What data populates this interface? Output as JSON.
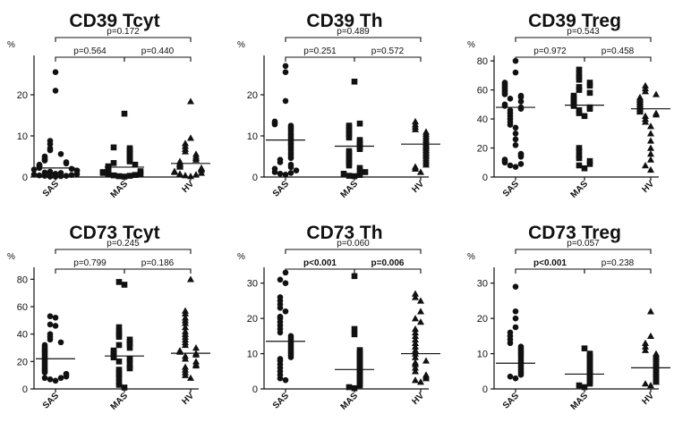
{
  "chart_data": [
    {
      "type": "scatter",
      "title": "CD39 Tcyt",
      "ylabel": "%",
      "ylim": [
        0,
        30
      ],
      "yticks": [
        0,
        10,
        20
      ],
      "categories": [
        "SAS",
        "MAS",
        "HV"
      ],
      "markers": [
        "circle",
        "square",
        "triangle"
      ],
      "series": [
        {
          "name": "SAS",
          "median": 2.2,
          "values": [
            25.5,
            21,
            8.8,
            8,
            7,
            6.5,
            5.6,
            5,
            4.6,
            4.2,
            4,
            3.6,
            3.3,
            3,
            2.8,
            2.6,
            2.4,
            2.2,
            2,
            1.8,
            1.6,
            1.5,
            1.3,
            1.1,
            1,
            0.9,
            0.8,
            0.7,
            0.6,
            0.5,
            0.4,
            0.3,
            0.3,
            0.2,
            0.1,
            0.1
          ]
        },
        {
          "name": "MAS",
          "median": 2.4,
          "values": [
            15.4,
            7.2,
            7,
            6.6,
            6.2,
            5.8,
            5.4,
            5,
            4.6,
            4.2,
            3.8,
            3.4,
            3,
            2.6,
            2.4,
            2.2,
            2,
            1.8,
            1.6,
            1.4,
            1.2,
            1,
            0.8,
            0.6,
            0.5,
            0.4,
            0.3,
            0.2,
            0.1
          ]
        },
        {
          "name": "HV",
          "median": 3.3,
          "values": [
            18.4,
            9.5,
            8.2,
            7.5,
            6.8,
            6.2,
            5.6,
            5,
            4.6,
            4.2,
            3.8,
            3.4,
            3.1,
            2.8,
            2.5,
            2.2,
            2,
            1.7,
            1.4,
            1.2,
            1,
            0.8,
            0.6,
            0.4,
            0.2
          ]
        }
      ],
      "comparisons": [
        {
          "from": "SAS",
          "to": "HV",
          "p": "p=0.172",
          "bold": false
        },
        {
          "from": "SAS",
          "to": "MAS",
          "p": "p=0.564",
          "bold": false
        },
        {
          "from": "MAS",
          "to": "HV",
          "p": "p=0.440",
          "bold": false
        }
      ]
    },
    {
      "type": "scatter",
      "title": "CD39 Th",
      "ylabel": "%",
      "ylim": [
        0,
        30
      ],
      "yticks": [
        0,
        10,
        20
      ],
      "categories": [
        "SAS",
        "MAS",
        "HV"
      ],
      "markers": [
        "circle",
        "square",
        "triangle"
      ],
      "series": [
        {
          "name": "SAS",
          "median": 9,
          "values": [
            27,
            25.5,
            18.5,
            13.5,
            13.2,
            12.8,
            12.5,
            12.2,
            11.8,
            11.4,
            11,
            10.5,
            10.2,
            9.8,
            9.4,
            9,
            8.6,
            8.2,
            7.8,
            7.4,
            7,
            6.5,
            6,
            5.5,
            5,
            4.6,
            4.2,
            3.6,
            3,
            2.4,
            2,
            1.6,
            1.2,
            1,
            0.8,
            0.6
          ]
        },
        {
          "name": "MAS",
          "median": 7.5,
          "values": [
            23.2,
            13,
            12.5,
            12,
            11.4,
            10.8,
            10.2,
            9.6,
            9,
            8.4,
            8,
            7.6,
            7.2,
            6.8,
            6.3,
            5.8,
            5.2,
            4.6,
            4,
            3.4,
            2.8,
            2.2,
            1.6,
            1.2,
            0.8,
            0.5,
            0.3,
            0.2
          ]
        },
        {
          "name": "HV",
          "median": 8,
          "values": [
            13.5,
            12.8,
            12.2,
            11.6,
            11,
            10.5,
            10,
            9.5,
            9,
            8.6,
            8.2,
            7.8,
            7.4,
            7,
            6.6,
            6.2,
            5.8,
            5.4,
            5,
            4.5,
            4,
            3.5,
            3,
            2.5,
            2,
            1.2
          ]
        }
      ],
      "comparisons": [
        {
          "from": "SAS",
          "to": "HV",
          "p": "p=0.489",
          "bold": false
        },
        {
          "from": "SAS",
          "to": "MAS",
          "p": "p=0.251",
          "bold": false
        },
        {
          "from": "MAS",
          "to": "HV",
          "p": "p=0.572",
          "bold": false
        }
      ]
    },
    {
      "type": "scatter",
      "title": "CD39 Treg",
      "ylabel": "%",
      "ylim": [
        0,
        85
      ],
      "yticks": [
        0,
        20,
        40,
        60,
        80
      ],
      "categories": [
        "SAS",
        "MAS",
        "HV"
      ],
      "markers": [
        "circle",
        "square",
        "triangle"
      ],
      "series": [
        {
          "name": "SAS",
          "median": 48,
          "values": [
            80,
            72,
            65,
            64,
            63,
            62,
            61,
            60,
            59,
            58,
            57,
            56,
            55,
            54,
            52,
            50,
            49,
            48,
            47,
            46,
            44,
            42,
            40,
            38,
            36,
            34,
            30,
            26,
            22,
            16,
            15,
            14,
            12,
            11,
            10,
            9,
            8,
            7
          ]
        },
        {
          "name": "MAS",
          "median": 49.5,
          "values": [
            74,
            71,
            69,
            67,
            65,
            63,
            62,
            60,
            58,
            56,
            55,
            54,
            53,
            52,
            51,
            50,
            49,
            48,
            47,
            46,
            44,
            42,
            20,
            18,
            15,
            13,
            11,
            9,
            8,
            6
          ]
        },
        {
          "name": "HV",
          "median": 47,
          "values": [
            63,
            61,
            59,
            57,
            55,
            54,
            53,
            52,
            51,
            50,
            49,
            48,
            47,
            46,
            45,
            44,
            43,
            42,
            40,
            38,
            35,
            30,
            25,
            20,
            16,
            12,
            8,
            5
          ]
        }
      ],
      "comparisons": [
        {
          "from": "SAS",
          "to": "HV",
          "p": "p=0.543",
          "bold": false
        },
        {
          "from": "SAS",
          "to": "MAS",
          "p": "p=0.972",
          "bold": false
        },
        {
          "from": "MAS",
          "to": "HV",
          "p": "p=0.458",
          "bold": false
        }
      ]
    },
    {
      "type": "scatter",
      "title": "CD73 Tcyt",
      "ylabel": "%",
      "ylim": [
        0,
        90
      ],
      "yticks": [
        0,
        20,
        40,
        60,
        80
      ],
      "categories": [
        "SAS",
        "MAS",
        "HV"
      ],
      "markers": [
        "circle",
        "square",
        "triangle"
      ],
      "series": [
        {
          "name": "SAS",
          "median": 22,
          "values": [
            53,
            52,
            47,
            46,
            40,
            38,
            36,
            34,
            32,
            31,
            30,
            29,
            28,
            27,
            26,
            25,
            24,
            23,
            22,
            21,
            20,
            19,
            18,
            17,
            16,
            15,
            14,
            13,
            12,
            11,
            10,
            9,
            8,
            8,
            7,
            6
          ]
        },
        {
          "name": "MAS",
          "median": 24,
          "values": [
            78,
            76,
            45,
            42,
            40,
            38,
            36,
            34,
            33,
            32,
            30,
            28,
            27,
            26,
            25,
            24,
            23,
            22,
            21,
            20,
            18,
            16,
            15,
            14,
            12,
            10,
            8,
            5,
            3,
            1
          ]
        },
        {
          "name": "HV",
          "median": 26,
          "values": [
            80,
            57,
            55,
            52,
            50,
            48,
            45,
            42,
            40,
            38,
            36,
            34,
            32,
            30,
            28,
            27,
            26,
            25,
            24,
            22,
            20,
            18,
            17,
            16,
            14,
            12,
            10,
            8
          ]
        }
      ],
      "comparisons": [
        {
          "from": "SAS",
          "to": "HV",
          "p": "p=0.245",
          "bold": false
        },
        {
          "from": "SAS",
          "to": "MAS",
          "p": "p=0.799",
          "bold": false
        },
        {
          "from": "MAS",
          "to": "HV",
          "p": "p=0.186",
          "bold": false
        }
      ]
    },
    {
      "type": "scatter",
      "title": "CD73 Th",
      "ylabel": "%",
      "ylim": [
        0,
        35
      ],
      "yticks": [
        0,
        10,
        20,
        30
      ],
      "categories": [
        "SAS",
        "MAS",
        "HV"
      ],
      "markers": [
        "circle",
        "square",
        "triangle"
      ],
      "series": [
        {
          "name": "SAS",
          "median": 13.5,
          "values": [
            33,
            31,
            30,
            26,
            25,
            24,
            23,
            22,
            20.5,
            20,
            19,
            18,
            17,
            16,
            15,
            14.5,
            14,
            13.5,
            13,
            12.5,
            12,
            11.5,
            11,
            10.5,
            10,
            9.5,
            9,
            8.5,
            8,
            7,
            6,
            5,
            4,
            3,
            2.5
          ]
        },
        {
          "name": "MAS",
          "median": 5.5,
          "values": [
            32,
            17,
            15.5,
            11,
            10.5,
            10,
            9.5,
            9,
            8.5,
            8,
            7.5,
            7,
            6.5,
            6,
            5.5,
            5,
            4.5,
            4,
            3.5,
            3,
            2.5,
            2,
            1.5,
            1,
            0.5,
            0.2
          ]
        },
        {
          "name": "HV",
          "median": 10,
          "values": [
            27,
            26,
            25,
            22,
            20,
            19,
            17,
            16,
            15,
            14,
            13,
            12,
            11,
            10,
            9,
            8,
            7.5,
            7,
            6,
            5,
            4,
            3.5,
            3,
            2.5,
            2
          ]
        }
      ],
      "comparisons": [
        {
          "from": "SAS",
          "to": "HV",
          "p": "p=0.060",
          "bold": false
        },
        {
          "from": "SAS",
          "to": "MAS",
          "p": "p<0.001",
          "bold": true
        },
        {
          "from": "MAS",
          "to": "HV",
          "p": "p=0.006",
          "bold": true
        }
      ]
    },
    {
      "type": "scatter",
      "title": "CD73 Treg",
      "ylabel": "%",
      "ylim": [
        0,
        35
      ],
      "yticks": [
        0,
        10,
        20,
        30
      ],
      "categories": [
        "SAS",
        "MAS",
        "HV"
      ],
      "markers": [
        "circle",
        "square",
        "triangle"
      ],
      "series": [
        {
          "name": "SAS",
          "median": 7.3,
          "values": [
            29,
            22,
            20,
            17.5,
            16,
            15,
            14,
            13,
            12,
            11.5,
            11,
            10.5,
            10,
            9.5,
            9,
            8.5,
            8,
            7.5,
            7,
            6.5,
            6,
            5.5,
            5,
            4.5,
            4,
            3.5,
            3
          ]
        },
        {
          "name": "MAS",
          "median": 4.2,
          "values": [
            11.5,
            10,
            9.5,
            9,
            8.5,
            8,
            7.5,
            7,
            6.5,
            6,
            5.5,
            5,
            4.5,
            4,
            3.5,
            3,
            2.5,
            2,
            1.5,
            1,
            0.5
          ]
        },
        {
          "name": "HV",
          "median": 6,
          "values": [
            22,
            15,
            13,
            12,
            11,
            10,
            9.5,
            9,
            8.5,
            8,
            7.5,
            7,
            6.5,
            6,
            5.5,
            5,
            4.5,
            4,
            3.5,
            3,
            2.5,
            2,
            1.5,
            1
          ]
        }
      ],
      "comparisons": [
        {
          "from": "SAS",
          "to": "HV",
          "p": "p=0.057",
          "bold": false
        },
        {
          "from": "SAS",
          "to": "MAS",
          "p": "p<0.001",
          "bold": true
        },
        {
          "from": "MAS",
          "to": "HV",
          "p": "p=0.238",
          "bold": false
        }
      ]
    }
  ]
}
